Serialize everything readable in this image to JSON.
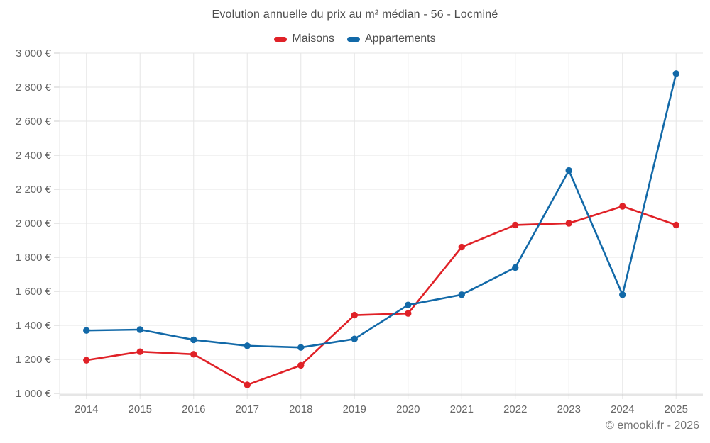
{
  "title": "Evolution annuelle du prix au m² médian - 56 - Locminé",
  "attribution": "© emooki.fr - 2026",
  "legend": [
    {
      "label": "Maisons",
      "color": "#e02127"
    },
    {
      "label": "Appartements",
      "color": "#1269a8"
    }
  ],
  "chart_data": {
    "type": "line",
    "title": "Evolution annuelle du prix au m² médian - 56 - Locminé",
    "categories": [
      "2014",
      "2015",
      "2016",
      "2017",
      "2018",
      "2019",
      "2020",
      "2021",
      "2022",
      "2023",
      "2024",
      "2025"
    ],
    "series": [
      {
        "name": "Maisons",
        "color": "#e02127",
        "values": [
          1195,
          1245,
          1230,
          1050,
          1165,
          1460,
          1470,
          1860,
          1990,
          2000,
          2100,
          1990
        ]
      },
      {
        "name": "Appartements",
        "color": "#1269a8",
        "values": [
          1370,
          1375,
          1315,
          1280,
          1270,
          1320,
          1520,
          1580,
          1740,
          2310,
          1580,
          2880
        ]
      }
    ],
    "xlabel": "",
    "ylabel": "",
    "ylim": [
      1000,
      3000
    ],
    "y_ticks": [
      1000,
      1200,
      1400,
      1600,
      1800,
      2000,
      2200,
      2400,
      2600,
      2800,
      3000
    ],
    "y_tick_suffix": " €",
    "grid": true,
    "legend_position": "top",
    "colors": {
      "grid": "#e6e6e6",
      "axis_line": "#cccccc",
      "axis_text": "#666666",
      "title_text": "#4d4d4d"
    }
  }
}
